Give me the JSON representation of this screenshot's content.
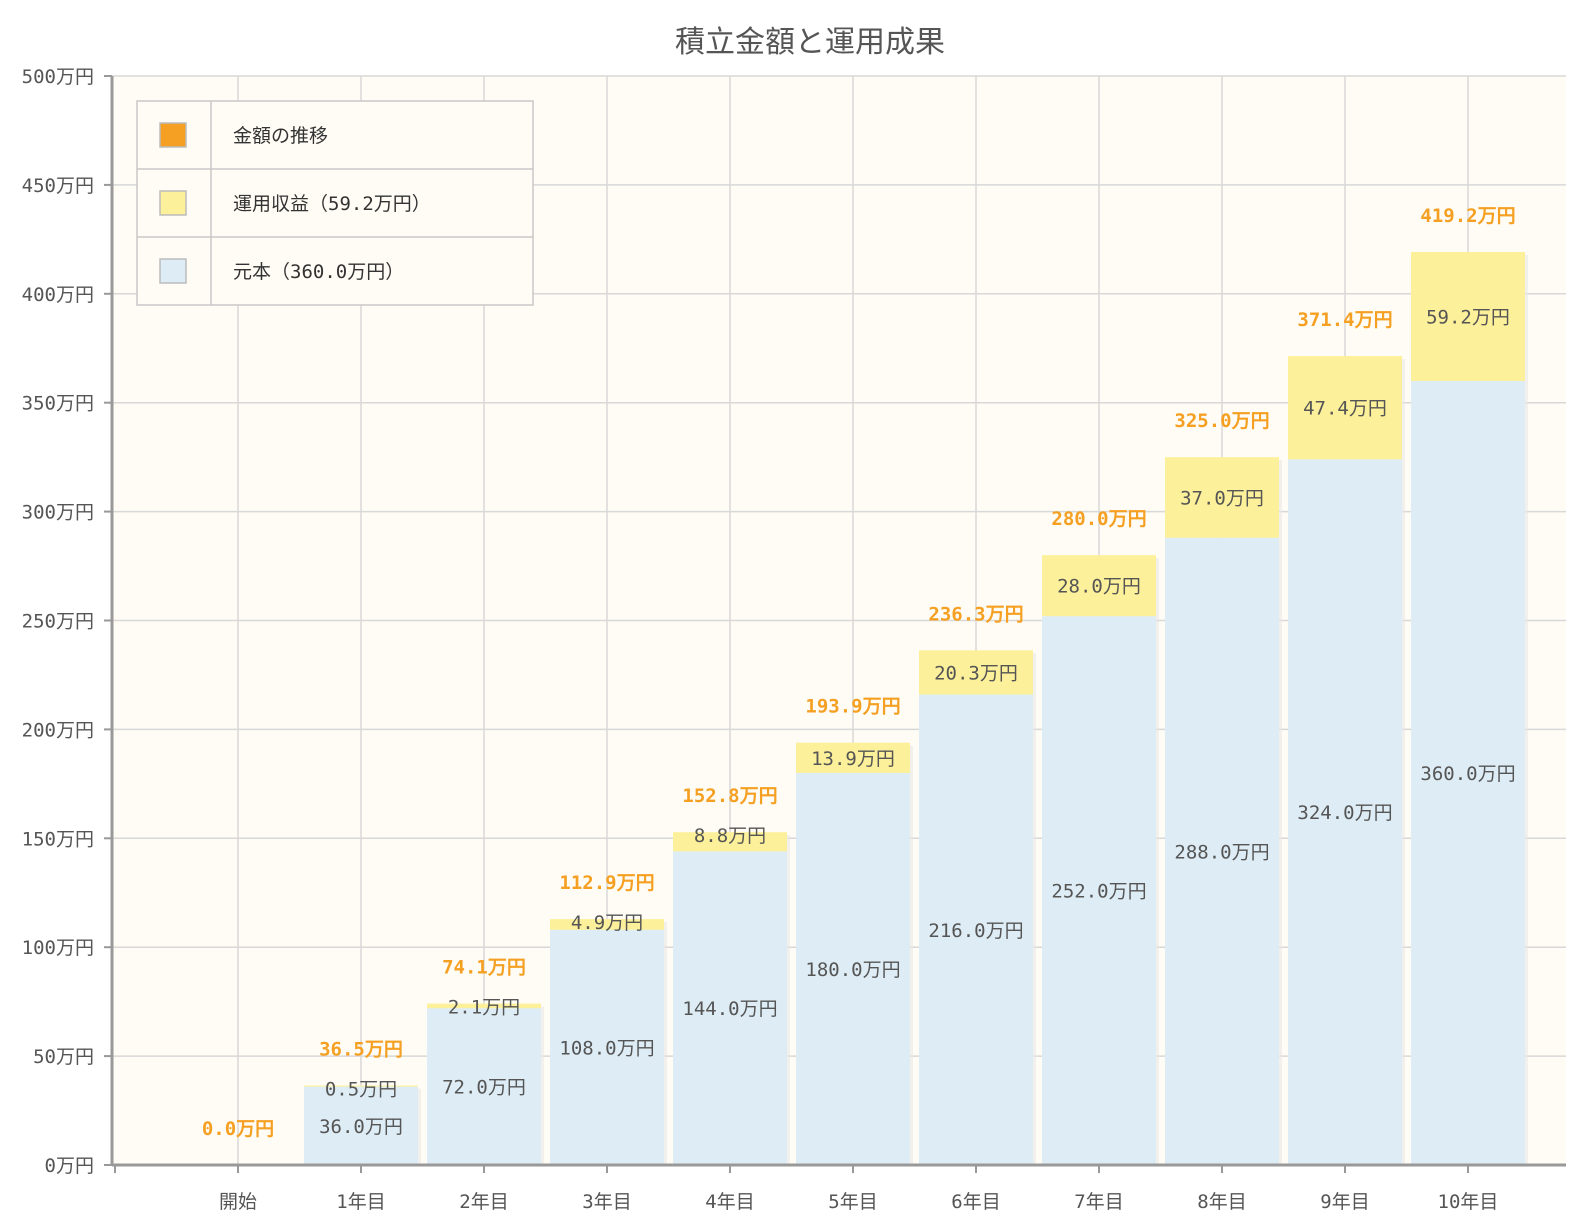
{
  "chart_data": {
    "type": "bar",
    "title": "積立金額と運用成果",
    "categories": [
      "開始",
      "1年目",
      "2年目",
      "3年目",
      "4年目",
      "5年目",
      "6年目",
      "7年目",
      "8年目",
      "9年目",
      "10年目"
    ],
    "series": [
      {
        "name": "元本（360.0万円）",
        "color": "#deedf5",
        "values": [
          0,
          36.0,
          72.0,
          108.0,
          144.0,
          180.0,
          216.0,
          252.0,
          288.0,
          324.0,
          360.0
        ],
        "labels": [
          "",
          "36.0万円",
          "72.0万円",
          "108.0万円",
          "144.0万円",
          "180.0万円",
          "216.0万円",
          "252.0万円",
          "288.0万円",
          "324.0万円",
          "360.0万円"
        ]
      },
      {
        "name": "運用収益（59.2万円）",
        "color": "#fdf09a",
        "values": [
          0,
          0.5,
          2.1,
          4.9,
          8.8,
          13.9,
          20.3,
          28.0,
          37.0,
          47.4,
          59.2
        ],
        "labels": [
          "",
          "0.5万円",
          "2.1万円",
          "4.9万円",
          "8.8万円",
          "13.9万円",
          "20.3万円",
          "28.0万円",
          "37.0万円",
          "47.4万円",
          "59.2万円"
        ]
      },
      {
        "name": "金額の推移",
        "color": "#f5a023",
        "values": [
          0.0,
          36.5,
          74.1,
          112.9,
          152.8,
          193.9,
          236.3,
          280.0,
          325.0,
          371.4,
          419.2
        ],
        "labels": [
          "0.0万円",
          "36.5万円",
          "74.1万円",
          "112.9万円",
          "152.8万円",
          "193.9万円",
          "236.3万円",
          "280.0万円",
          "325.0万円",
          "371.4万円",
          "419.2万円"
        ]
      }
    ],
    "ylim": [
      0,
      500
    ],
    "yticks": [
      0,
      50,
      100,
      150,
      200,
      250,
      300,
      350,
      400,
      450,
      500
    ],
    "ytick_labels": [
      "0万円",
      "50万円",
      "100万円",
      "150万円",
      "200万円",
      "250万円",
      "300万円",
      "350万円",
      "400万円",
      "450万円",
      "500万円"
    ],
    "legend": {
      "placement": "top-left",
      "items": [
        "金額の推移",
        "運用収益（59.2万円）",
        "元本（360.0万円）"
      ]
    },
    "grid": true,
    "colors": {
      "plot_background": "#fefcf4",
      "grid": "#d8d8d8",
      "axis": "#999999"
    }
  }
}
